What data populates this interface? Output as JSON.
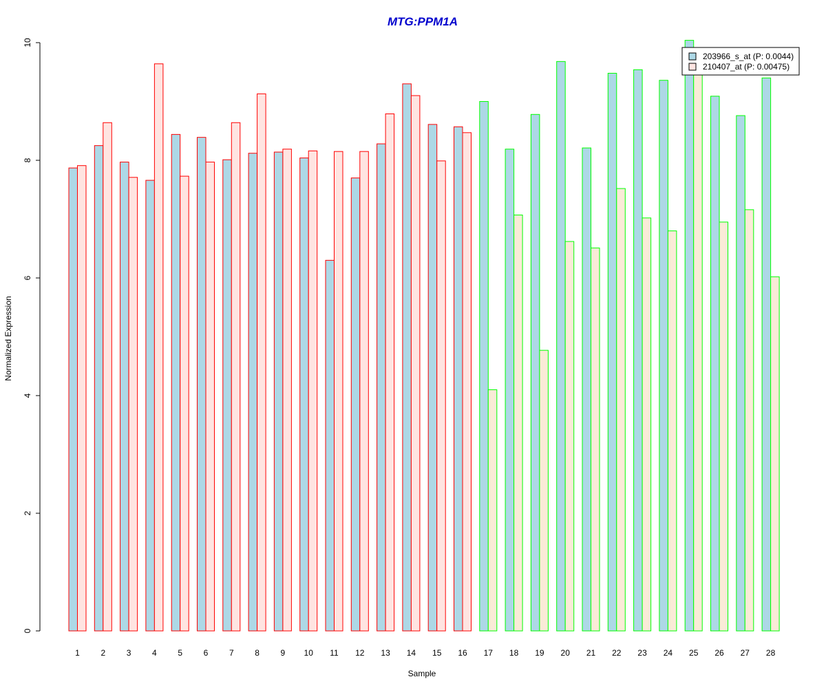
{
  "chart_data": {
    "type": "bar",
    "title": "MTG:PPM1A",
    "xlabel": "Sample",
    "ylabel": "Normalized Expression",
    "ylim": [
      0,
      10
    ],
    "yticks": [
      0,
      2,
      4,
      6,
      8,
      10
    ],
    "categories": [
      "1",
      "2",
      "3",
      "4",
      "5",
      "6",
      "7",
      "8",
      "9",
      "10",
      "11",
      "12",
      "13",
      "14",
      "15",
      "16",
      "17",
      "18",
      "19",
      "20",
      "21",
      "22",
      "23",
      "24",
      "25",
      "26",
      "27",
      "28"
    ],
    "series": [
      {
        "name": "203966_s_at (P: 0.0044)",
        "values": [
          7.87,
          8.25,
          7.97,
          7.66,
          8.44,
          8.39,
          8.01,
          8.12,
          8.14,
          8.04,
          6.3,
          7.7,
          8.28,
          9.3,
          8.61,
          8.57,
          9.0,
          8.19,
          8.78,
          9.68,
          8.21,
          9.48,
          9.54,
          9.36,
          10.04,
          9.09,
          8.76,
          9.4
        ]
      },
      {
        "name": "210407_at (P: 0.00475)",
        "values": [
          7.91,
          8.64,
          7.71,
          9.64,
          7.73,
          7.97,
          8.64,
          9.13,
          8.19,
          8.16,
          8.15,
          8.15,
          8.79,
          9.1,
          7.99,
          8.47,
          4.1,
          7.07,
          4.77,
          6.62,
          6.51,
          7.52,
          7.02,
          6.8,
          9.85,
          6.95,
          7.16,
          6.02
        ]
      }
    ],
    "colors": {
      "series1_fill": "#add8e6",
      "series2_fill_group1": "#ffe4e1",
      "series2_fill_group2": "#faebd7",
      "border_group1": "#ff0000",
      "border_group2": "#00ff00",
      "title": "#0000cd"
    },
    "legend_position": "top-right",
    "grid": false
  }
}
